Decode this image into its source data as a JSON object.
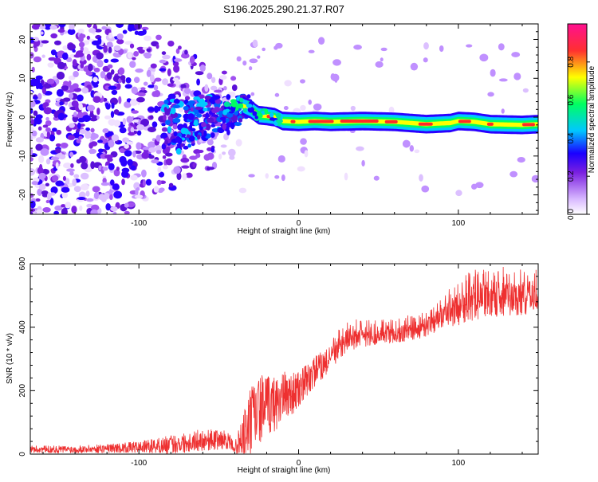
{
  "title": "S196.2025.290.21.37.R07",
  "chart_data": [
    {
      "type": "heatmap",
      "title": "S196.2025.290.21.37.R07",
      "xlabel": "Height of straight line (km)",
      "ylabel": "Frequency (Hz)",
      "xlim": [
        -168,
        150
      ],
      "ylim": [
        -25,
        24
      ],
      "xticks": [
        -100,
        0,
        100
      ],
      "yticks": [
        -20,
        -10,
        0,
        10,
        20
      ],
      "xtick_labels": [
        "-100",
        "0",
        "100"
      ],
      "ytick_labels": [
        "-20",
        "-10",
        "0",
        "10",
        "20"
      ],
      "colorbar": {
        "label": "Normalized spectral amplitude",
        "range": [
          0,
          1
        ],
        "ticks": [
          0.0,
          0.2,
          0.4,
          0.6,
          0.8
        ],
        "tick_labels": [
          "0.0",
          "0.2",
          "0.4",
          "0.6",
          "0.8"
        ],
        "colors": [
          "#ffffff",
          "#d8b8ff",
          "#7a1fe0",
          "#1a00ff",
          "#00c8ff",
          "#00ff60",
          "#ffff00",
          "#ff3030",
          "#ff1090"
        ]
      },
      "ridge": {
        "x": [
          -35,
          -30,
          -25,
          -20,
          -15,
          -10,
          0,
          10,
          20,
          40,
          60,
          80,
          95,
          100,
          110,
          120,
          140,
          150
        ],
        "freq": [
          3,
          2,
          0.5,
          0.3,
          0,
          -1,
          -1.2,
          -1,
          -1.2,
          -1,
          -1.2,
          -1.8,
          -1.5,
          -1,
          -1.2,
          -1.8,
          -2,
          -1.8
        ]
      }
    },
    {
      "type": "line",
      "xlabel": "Height of straight line (km)",
      "ylabel": "SNR (10 * v/v)",
      "xlim": [
        -168,
        150
      ],
      "ylim": [
        0,
        600
      ],
      "xticks": [
        -100,
        0,
        100
      ],
      "yticks": [
        0,
        200,
        400,
        600
      ],
      "xtick_labels": [
        "-100",
        "0",
        "100"
      ],
      "ytick_labels": [
        "0",
        "200",
        "400",
        "600"
      ],
      "series": [
        {
          "name": "SNR",
          "color": "#ee3030",
          "x": [
            -168,
            -140,
            -120,
            -100,
            -80,
            -60,
            -45,
            -40,
            -35,
            -30,
            -25,
            -20,
            -15,
            -10,
            0,
            10,
            20,
            30,
            50,
            70,
            80,
            90,
            100,
            110,
            120,
            130,
            140,
            150
          ],
          "y": [
            15,
            15,
            18,
            22,
            30,
            45,
            45,
            20,
            45,
            100,
            140,
            150,
            160,
            180,
            200,
            260,
            300,
            360,
            375,
            385,
            400,
            430,
            460,
            480,
            490,
            490,
            490,
            500
          ],
          "noise": [
            12,
            12,
            14,
            18,
            30,
            35,
            30,
            15,
            80,
            120,
            110,
            100,
            90,
            80,
            60,
            50,
            40,
            35,
            30,
            30,
            30,
            35,
            55,
            60,
            60,
            55,
            55,
            50
          ]
        }
      ]
    }
  ]
}
